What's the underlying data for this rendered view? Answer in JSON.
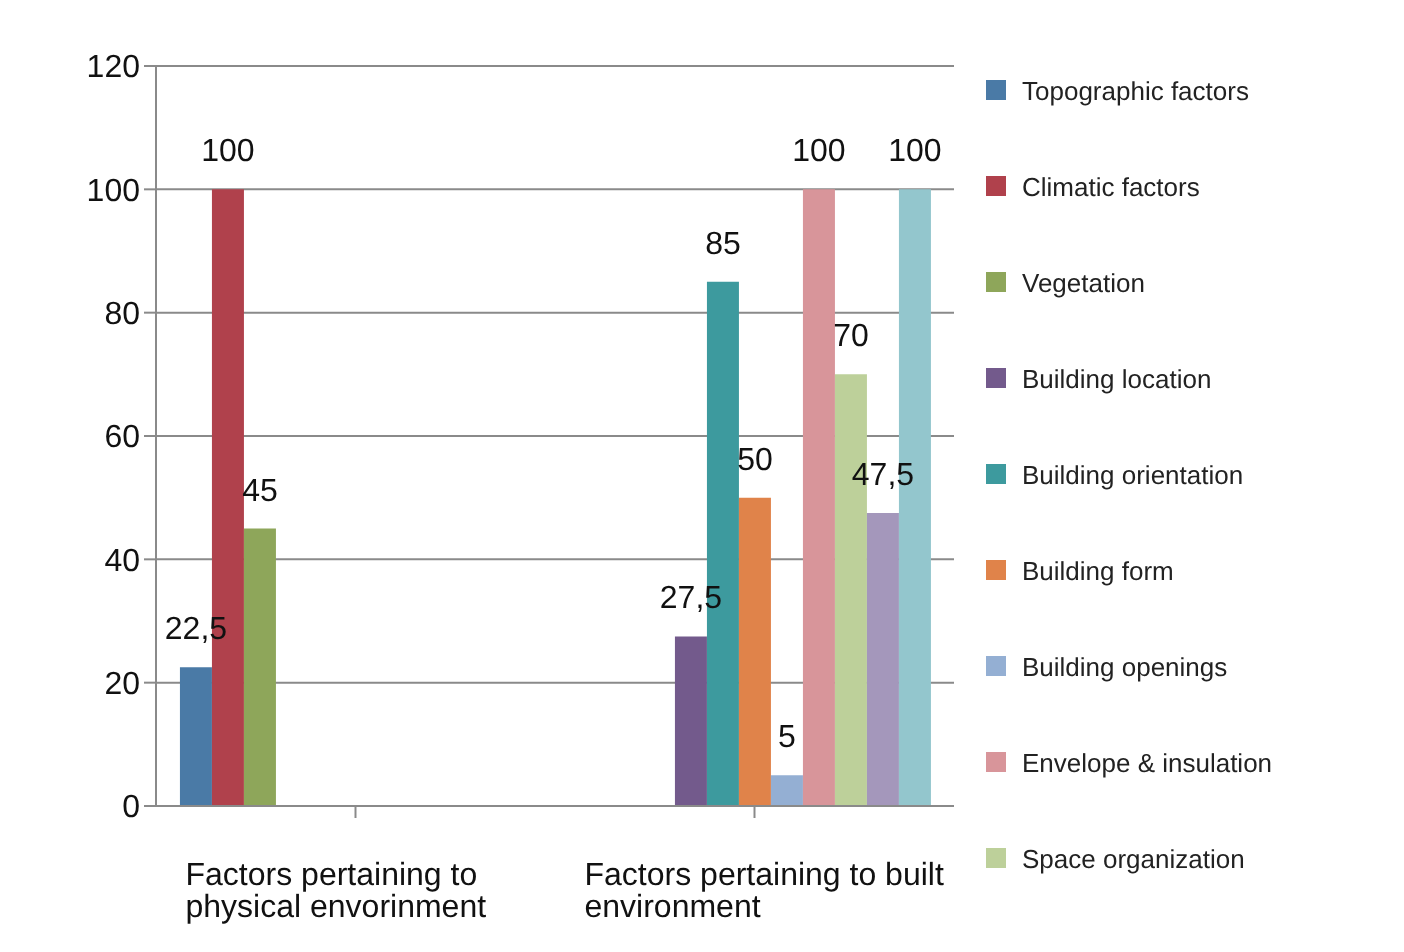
{
  "chart_data": {
    "type": "bar",
    "categories": [
      "Factors pertaining to physical envorinment",
      "Factors pertaining to built environment"
    ],
    "series": [
      {
        "name": "Topographic factors",
        "color": "#4a7aa6",
        "values": [
          22.5,
          null
        ],
        "value_labels": [
          "22,5",
          null
        ]
      },
      {
        "name": "Climatic factors",
        "color": "#b0414c",
        "values": [
          100,
          null
        ],
        "value_labels": [
          "100",
          null
        ]
      },
      {
        "name": "Vegetation",
        "color": "#8ea65a",
        "values": [
          45,
          null
        ],
        "value_labels": [
          "45",
          null
        ]
      },
      {
        "name": "Building location",
        "color": "#735a8c",
        "values": [
          null,
          27.5
        ],
        "value_labels": [
          null,
          "27,5"
        ]
      },
      {
        "name": "Building orientation",
        "color": "#3d9a9e",
        "values": [
          null,
          85
        ],
        "value_labels": [
          null,
          "85"
        ]
      },
      {
        "name": "Building form",
        "color": "#e0834a",
        "values": [
          null,
          50
        ],
        "value_labels": [
          null,
          "50"
        ]
      },
      {
        "name": "Building openings",
        "color": "#94afd3",
        "values": [
          null,
          5
        ],
        "value_labels": [
          null,
          "5"
        ]
      },
      {
        "name": "Envelope & insulation",
        "color": "#d8959a",
        "values": [
          null,
          100
        ],
        "value_labels": [
          null,
          "100"
        ]
      },
      {
        "name": "Space organization",
        "color": "#bdd09a",
        "values": [
          null,
          70
        ],
        "value_labels": [
          null,
          "70"
        ]
      },
      {
        "color": "#a497bb",
        "values": [
          null,
          47.5
        ],
        "value_labels": [
          null,
          "47,5"
        ]
      },
      {
        "color": "#93c6cd",
        "values": [
          null,
          100
        ],
        "value_labels": [
          null,
          "100"
        ]
      }
    ],
    "ylim": [
      0,
      120
    ],
    "yticks": [
      0,
      20,
      40,
      60,
      80,
      100,
      120
    ],
    "grid": "y",
    "legend": "right"
  }
}
